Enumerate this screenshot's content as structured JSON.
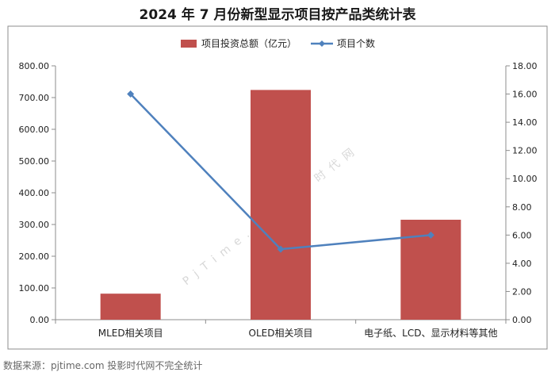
{
  "title": "2024 年 7 月份新型显示项目按产品类统计表",
  "source": "数据来源：pjtime.com 投影时代网不完全统计",
  "watermark": "P j T i m e . c o m 投 影 时 代 网",
  "chart_data": {
    "type": "bar",
    "categories": [
      "MLED相关项目",
      "OLED相关项目",
      "电子纸、LCD、显示材料等其他"
    ],
    "series": [
      {
        "name": "项目投资总额（亿元）",
        "type": "bar",
        "axis": "left",
        "values": [
          82,
          724,
          315
        ],
        "color": "#c0504d"
      },
      {
        "name": "项目个数",
        "type": "line",
        "axis": "right",
        "values": [
          16,
          5,
          6
        ],
        "color": "#4f81bd"
      }
    ],
    "ylim_left": [
      0,
      800
    ],
    "ylim_right": [
      0,
      18
    ],
    "yticks_left": [
      "0.00",
      "100.00",
      "200.00",
      "300.00",
      "400.00",
      "500.00",
      "600.00",
      "700.00",
      "800.00"
    ],
    "yticks_right": [
      "0.00",
      "2.00",
      "4.00",
      "6.00",
      "8.00",
      "10.00",
      "12.00",
      "14.00",
      "16.00",
      "18.00"
    ],
    "legend_position": "top-center",
    "grid": false
  }
}
